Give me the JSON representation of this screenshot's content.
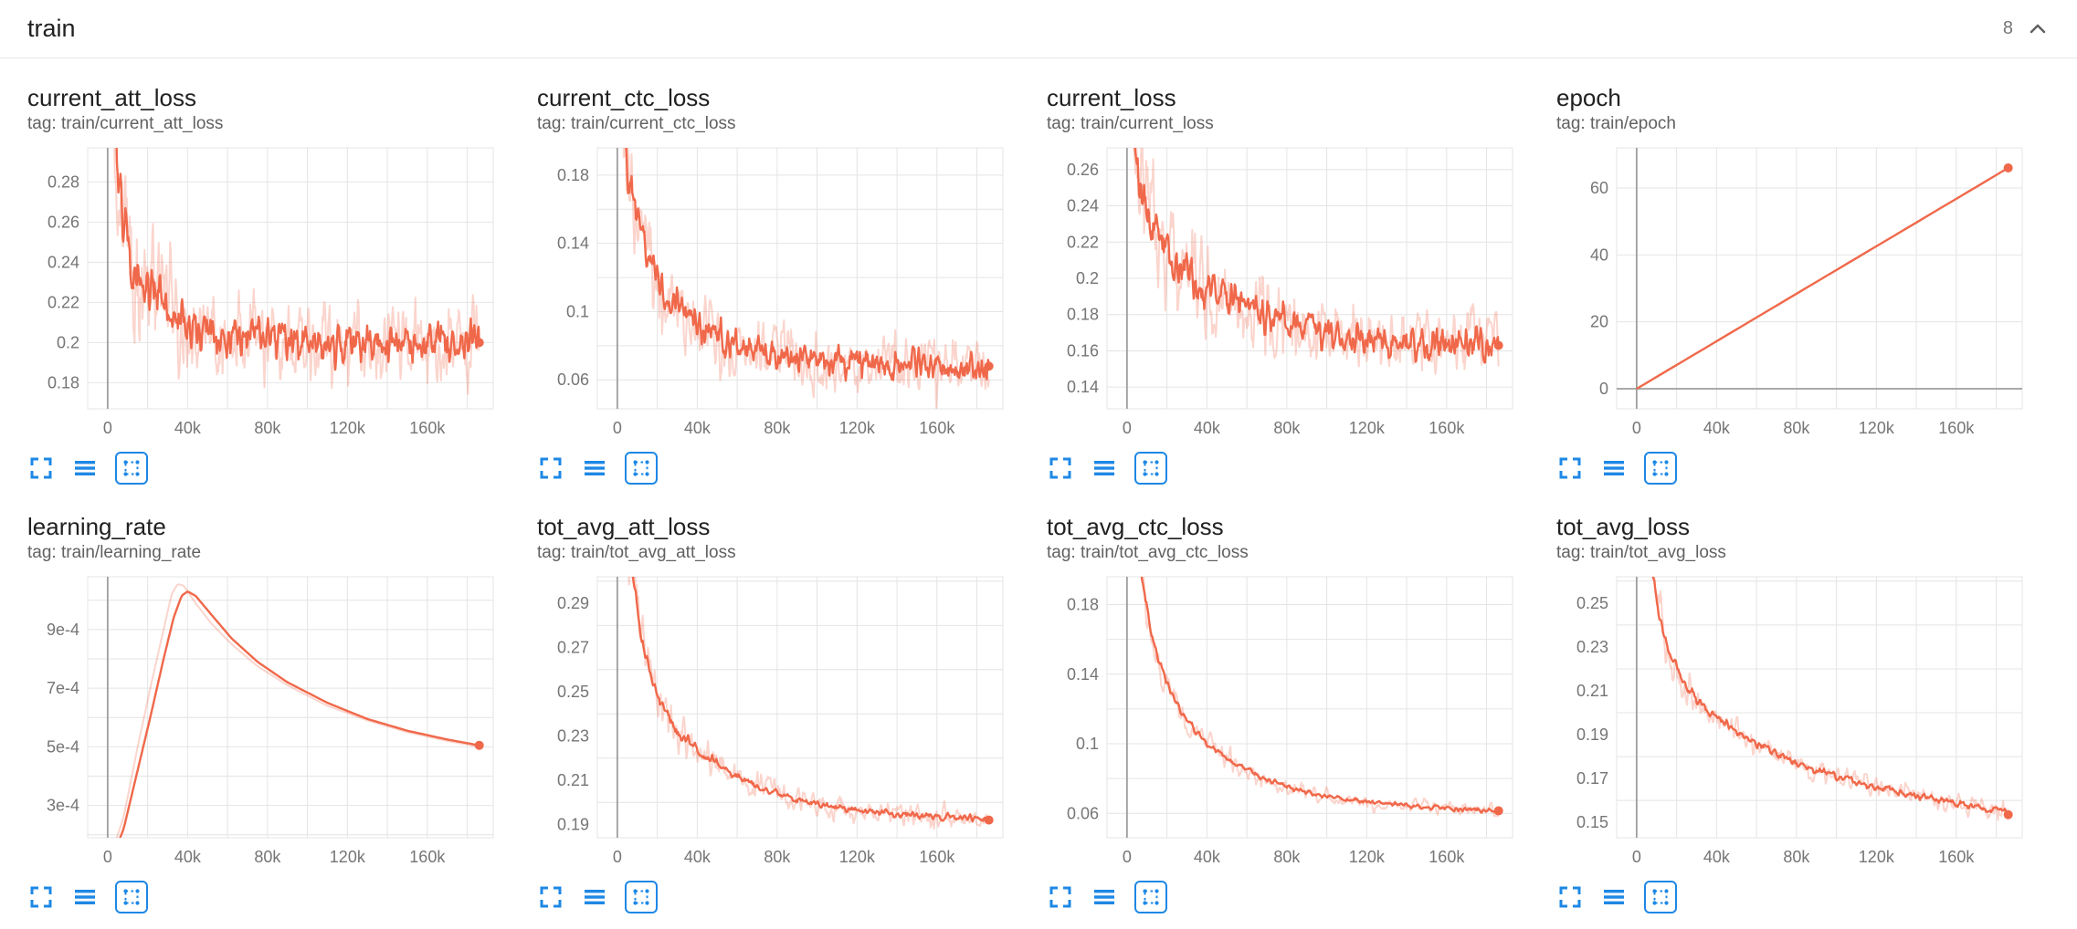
{
  "header": {
    "title": "train",
    "count": "8"
  },
  "colors": {
    "accent": "#f0684a",
    "icon_blue": "#1e88e5",
    "grid": "#e4e4e4",
    "axis": "#9e9e9e",
    "tick_text": "#757575"
  },
  "card_toolbar": {
    "icons": [
      "fullscreen-icon",
      "data-table-icon",
      "fit-domain-icon"
    ]
  },
  "chart_data": [
    {
      "type": "line",
      "title": "current_att_loss",
      "tag": "tag: train/current_att_loss",
      "xlim": [
        -10000,
        193000
      ],
      "x_grid_step": 20000,
      "xticks": [
        [
          0,
          "0"
        ],
        [
          40000,
          "40k"
        ],
        [
          80000,
          "80k"
        ],
        [
          120000,
          "120k"
        ],
        [
          160000,
          "160k"
        ]
      ],
      "ylim": [
        0.167,
        0.297
      ],
      "y_grid_step": 0.02,
      "yticks": [
        [
          0.18,
          "0.18"
        ],
        [
          0.2,
          "0.2"
        ],
        [
          0.22,
          "0.22"
        ],
        [
          0.24,
          "0.24"
        ],
        [
          0.26,
          "0.26"
        ],
        [
          0.28,
          "0.28"
        ]
      ],
      "x_start": 1800,
      "x_end": 186000,
      "samples": 520,
      "trend": [
        [
          1500,
          0.34
        ],
        [
          5000,
          0.285
        ],
        [
          9000,
          0.255
        ],
        [
          15000,
          0.235
        ],
        [
          25000,
          0.222
        ],
        [
          40000,
          0.21
        ],
        [
          60000,
          0.204
        ],
        [
          90000,
          0.2
        ],
        [
          130000,
          0.198
        ],
        [
          186000,
          0.2
        ]
      ],
      "noise": 0.011,
      "band_noise": 0.022,
      "noise_boost": 1.2,
      "final": 0.2
    },
    {
      "type": "line",
      "title": "current_ctc_loss",
      "tag": "tag: train/current_ctc_loss",
      "xlim": [
        -10000,
        193000
      ],
      "x_grid_step": 20000,
      "xticks": [
        [
          0,
          "0"
        ],
        [
          40000,
          "40k"
        ],
        [
          80000,
          "80k"
        ],
        [
          120000,
          "120k"
        ],
        [
          160000,
          "160k"
        ]
      ],
      "ylim": [
        0.043,
        0.196
      ],
      "y_grid_step": 0.02,
      "yticks": [
        [
          0.06,
          "0.06"
        ],
        [
          0.1,
          "0.1"
        ],
        [
          0.14,
          "0.14"
        ],
        [
          0.18,
          "0.18"
        ]
      ],
      "x_start": 1800,
      "x_end": 186000,
      "samples": 520,
      "trend": [
        [
          1500,
          0.24
        ],
        [
          5000,
          0.185
        ],
        [
          9000,
          0.155
        ],
        [
          15000,
          0.13
        ],
        [
          25000,
          0.11
        ],
        [
          40000,
          0.092
        ],
        [
          60000,
          0.08
        ],
        [
          90000,
          0.072
        ],
        [
          130000,
          0.068
        ],
        [
          186000,
          0.067
        ]
      ],
      "noise": 0.0095,
      "band_noise": 0.02,
      "noise_boost": 1.2,
      "final": 0.068
    },
    {
      "type": "line",
      "title": "current_loss",
      "tag": "tag: train/current_loss",
      "xlim": [
        -10000,
        193000
      ],
      "x_grid_step": 20000,
      "xticks": [
        [
          0,
          "0"
        ],
        [
          40000,
          "40k"
        ],
        [
          80000,
          "80k"
        ],
        [
          120000,
          "120k"
        ],
        [
          160000,
          "160k"
        ]
      ],
      "ylim": [
        0.128,
        0.272
      ],
      "y_grid_step": 0.02,
      "yticks": [
        [
          0.14,
          "0.14"
        ],
        [
          0.16,
          "0.16"
        ],
        [
          0.18,
          "0.18"
        ],
        [
          0.2,
          "0.2"
        ],
        [
          0.22,
          "0.22"
        ],
        [
          0.24,
          "0.24"
        ],
        [
          0.26,
          "0.26"
        ]
      ],
      "x_start": 1800,
      "x_end": 186000,
      "samples": 520,
      "trend": [
        [
          1500,
          0.3
        ],
        [
          5000,
          0.262
        ],
        [
          9000,
          0.238
        ],
        [
          15000,
          0.222
        ],
        [
          25000,
          0.208
        ],
        [
          40000,
          0.193
        ],
        [
          60000,
          0.183
        ],
        [
          90000,
          0.172
        ],
        [
          130000,
          0.165
        ],
        [
          186000,
          0.163
        ]
      ],
      "noise": 0.01,
      "band_noise": 0.021,
      "noise_boost": 1.2,
      "final": 0.163
    },
    {
      "type": "line",
      "title": "epoch",
      "tag": "tag: train/epoch",
      "xlim": [
        -10000,
        193000
      ],
      "x_grid_step": 20000,
      "xticks": [
        [
          0,
          "0"
        ],
        [
          40000,
          "40k"
        ],
        [
          80000,
          "80k"
        ],
        [
          120000,
          "120k"
        ],
        [
          160000,
          "160k"
        ]
      ],
      "ylim": [
        -6,
        72
      ],
      "y_grid_step": 20,
      "yticks": [
        [
          0,
          "0"
        ],
        [
          20,
          "20"
        ],
        [
          40,
          "40"
        ],
        [
          60,
          "60"
        ]
      ],
      "x_start": 0,
      "x_end": 186000,
      "samples": 50,
      "trend": [
        [
          0,
          0
        ],
        [
          186000,
          66
        ]
      ],
      "noise": 0,
      "band_noise": 0,
      "noise_boost": 0,
      "final": 66
    },
    {
      "type": "line",
      "title": "learning_rate",
      "tag": "tag: train/learning_rate",
      "xlim": [
        -10000,
        193000
      ],
      "x_grid_step": 20000,
      "xticks": [
        [
          0,
          "0"
        ],
        [
          40000,
          "40k"
        ],
        [
          80000,
          "80k"
        ],
        [
          120000,
          "120k"
        ],
        [
          160000,
          "160k"
        ]
      ],
      "ylim": [
        0.00019,
        0.00108
      ],
      "y_grid_step": 0.0001,
      "yticks": [
        [
          0.0003,
          "3e-4"
        ],
        [
          0.0005,
          "5e-4"
        ],
        [
          0.0007,
          "7e-4"
        ],
        [
          0.0009,
          "9e-4"
        ]
      ],
      "x_start": 1000,
      "x_end": 186000,
      "samples": 220,
      "trend": [
        [
          1000,
          0.0001
        ],
        [
          8000,
          0.00022
        ],
        [
          15000,
          0.00042
        ],
        [
          22000,
          0.00062
        ],
        [
          28000,
          0.0008
        ],
        [
          33000,
          0.00094
        ],
        [
          37000,
          0.001015
        ],
        [
          40000,
          0.00103
        ],
        [
          44000,
          0.001015
        ],
        [
          52000,
          0.00095
        ],
        [
          62000,
          0.00087
        ],
        [
          75000,
          0.00079
        ],
        [
          90000,
          0.00072
        ],
        [
          110000,
          0.00065
        ],
        [
          130000,
          0.000595
        ],
        [
          150000,
          0.000555
        ],
        [
          170000,
          0.000525
        ],
        [
          186000,
          0.000505
        ]
      ],
      "band_trend": [
        [
          1000,
          0.00012
        ],
        [
          8000,
          0.00026
        ],
        [
          15000,
          0.0005
        ],
        [
          22000,
          0.00072
        ],
        [
          28000,
          0.0009
        ],
        [
          32000,
          0.00102
        ],
        [
          35000,
          0.001055
        ],
        [
          38000,
          0.00105
        ],
        [
          44000,
          0.00099
        ],
        [
          52000,
          0.00092
        ],
        [
          62000,
          0.00085
        ],
        [
          75000,
          0.000775
        ],
        [
          90000,
          0.00071
        ],
        [
          110000,
          0.00064
        ],
        [
          130000,
          0.00059
        ],
        [
          150000,
          0.00055
        ],
        [
          170000,
          0.00052
        ],
        [
          186000,
          0.0005
        ]
      ],
      "noise": 0,
      "band_noise": 0,
      "noise_boost": 0,
      "final": 0.000505
    },
    {
      "type": "line",
      "title": "tot_avg_att_loss",
      "tag": "tag: train/tot_avg_att_loss",
      "xlim": [
        -10000,
        193000
      ],
      "x_grid_step": 20000,
      "xticks": [
        [
          0,
          "0"
        ],
        [
          40000,
          "40k"
        ],
        [
          80000,
          "80k"
        ],
        [
          120000,
          "120k"
        ],
        [
          160000,
          "160k"
        ]
      ],
      "ylim": [
        0.184,
        0.302
      ],
      "y_grid_step": 0.02,
      "yticks": [
        [
          0.19,
          "0.19"
        ],
        [
          0.21,
          "0.21"
        ],
        [
          0.23,
          "0.23"
        ],
        [
          0.25,
          "0.25"
        ],
        [
          0.27,
          "0.27"
        ],
        [
          0.29,
          "0.29"
        ]
      ],
      "x_start": 2000,
      "x_end": 186000,
      "samples": 430,
      "trend": [
        [
          2000,
          0.34
        ],
        [
          6000,
          0.315
        ],
        [
          9000,
          0.295
        ],
        [
          12000,
          0.275
        ],
        [
          16000,
          0.258
        ],
        [
          22000,
          0.244
        ],
        [
          30000,
          0.232
        ],
        [
          40000,
          0.224
        ],
        [
          52000,
          0.216
        ],
        [
          66000,
          0.209
        ],
        [
          80000,
          0.204
        ],
        [
          100000,
          0.199
        ],
        [
          120000,
          0.1965
        ],
        [
          145000,
          0.1945
        ],
        [
          165000,
          0.1935
        ],
        [
          186000,
          0.1925
        ]
      ],
      "noise": 0.0018,
      "band_noise": 0.006,
      "noise_boost": 2.5,
      "final": 0.192
    },
    {
      "type": "line",
      "title": "tot_avg_ctc_loss",
      "tag": "tag: train/tot_avg_ctc_loss",
      "xlim": [
        -10000,
        193000
      ],
      "x_grid_step": 20000,
      "xticks": [
        [
          0,
          "0"
        ],
        [
          40000,
          "40k"
        ],
        [
          80000,
          "80k"
        ],
        [
          120000,
          "120k"
        ],
        [
          160000,
          "160k"
        ]
      ],
      "ylim": [
        0.046,
        0.196
      ],
      "y_grid_step": 0.02,
      "yticks": [
        [
          0.06,
          "0.06"
        ],
        [
          0.1,
          "0.1"
        ],
        [
          0.14,
          "0.14"
        ],
        [
          0.18,
          "0.18"
        ]
      ],
      "x_start": 2000,
      "x_end": 186000,
      "samples": 430,
      "trend": [
        [
          2000,
          0.23
        ],
        [
          6000,
          0.205
        ],
        [
          9000,
          0.185
        ],
        [
          12000,
          0.165
        ],
        [
          16000,
          0.147
        ],
        [
          22000,
          0.13
        ],
        [
          30000,
          0.113
        ],
        [
          40000,
          0.1
        ],
        [
          52000,
          0.09
        ],
        [
          66000,
          0.081
        ],
        [
          80000,
          0.0755
        ],
        [
          100000,
          0.07
        ],
        [
          120000,
          0.0665
        ],
        [
          145000,
          0.064
        ],
        [
          165000,
          0.0625
        ],
        [
          186000,
          0.0615
        ]
      ],
      "noise": 0.0015,
      "band_noise": 0.0048,
      "noise_boost": 2.5,
      "final": 0.0615
    },
    {
      "type": "line",
      "title": "tot_avg_loss",
      "tag": "tag: train/tot_avg_loss",
      "xlim": [
        -10000,
        193000
      ],
      "x_grid_step": 20000,
      "xticks": [
        [
          0,
          "0"
        ],
        [
          40000,
          "40k"
        ],
        [
          80000,
          "80k"
        ],
        [
          120000,
          "120k"
        ],
        [
          160000,
          "160k"
        ]
      ],
      "ylim": [
        0.143,
        0.262
      ],
      "y_grid_step": 0.02,
      "yticks": [
        [
          0.15,
          "0.15"
        ],
        [
          0.17,
          "0.17"
        ],
        [
          0.19,
          "0.19"
        ],
        [
          0.21,
          "0.21"
        ],
        [
          0.23,
          "0.23"
        ],
        [
          0.25,
          "0.25"
        ]
      ],
      "x_start": 2000,
      "x_end": 186000,
      "samples": 430,
      "trend": [
        [
          2000,
          0.3
        ],
        [
          6000,
          0.275
        ],
        [
          9000,
          0.258
        ],
        [
          12000,
          0.242
        ],
        [
          16000,
          0.228
        ],
        [
          22000,
          0.216
        ],
        [
          30000,
          0.206
        ],
        [
          40000,
          0.198
        ],
        [
          52000,
          0.19
        ],
        [
          66000,
          0.183
        ],
        [
          80000,
          0.177
        ],
        [
          100000,
          0.171
        ],
        [
          120000,
          0.166
        ],
        [
          145000,
          0.161
        ],
        [
          165000,
          0.158
        ],
        [
          186000,
          0.1545
        ]
      ],
      "noise": 0.0018,
      "band_noise": 0.005,
      "noise_boost": 2.5,
      "final": 0.1535
    }
  ]
}
